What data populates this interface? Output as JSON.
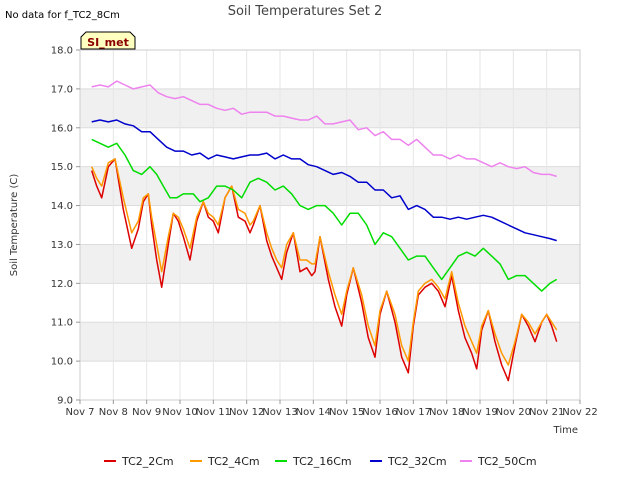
{
  "no_data_note": "No data for f_TC2_8Cm",
  "badge_label": "SI_met",
  "badge_colors": {
    "fill": "#ffffc0",
    "border": "#000000",
    "text": "#8b0000"
  },
  "band_color": "#f0f0f0",
  "chart_data": {
    "type": "line",
    "title": "Soil Temperatures Set 2",
    "xlabel": "Time",
    "ylabel": "Soil Temperature (C)",
    "xlim": [
      7,
      22
    ],
    "ylim": [
      9.0,
      18.0
    ],
    "y_ticks": [
      "9.0",
      "10.0",
      "11.0",
      "12.0",
      "13.0",
      "14.0",
      "15.0",
      "16.0",
      "17.0",
      "18.0"
    ],
    "x_ticks": [
      {
        "x": 7,
        "label": "Nov 7"
      },
      {
        "x": 8,
        "label": "Nov 8"
      },
      {
        "x": 9,
        "label": "Nov 9"
      },
      {
        "x": 10,
        "label": "Nov 10"
      },
      {
        "x": 11,
        "label": "Nov 11"
      },
      {
        "x": 12,
        "label": "Nov 12"
      },
      {
        "x": 13,
        "label": "Nov 13"
      },
      {
        "x": 14,
        "label": "Nov 14"
      },
      {
        "x": 15,
        "label": "Nov 15"
      },
      {
        "x": 16,
        "label": "Nov 16"
      },
      {
        "x": 17,
        "label": "Nov 17"
      },
      {
        "x": 18,
        "label": "Nov 18"
      },
      {
        "x": 19,
        "label": "Nov 19"
      },
      {
        "x": 20,
        "label": "Nov 20"
      },
      {
        "x": 21,
        "label": "Nov 21"
      },
      {
        "x": 22,
        "label": "Nov 22"
      }
    ],
    "grid": true,
    "legend_position": "bottom",
    "series": [
      {
        "name": "TC2_2Cm",
        "color": "#dd0000",
        "x": [
          7.35,
          7.5,
          7.65,
          7.85,
          8.05,
          8.3,
          8.55,
          8.75,
          8.9,
          9.05,
          9.15,
          9.3,
          9.45,
          9.65,
          9.8,
          9.95,
          10.1,
          10.3,
          10.5,
          10.7,
          10.85,
          11.0,
          11.15,
          11.35,
          11.55,
          11.75,
          11.95,
          12.1,
          12.2,
          12.4,
          12.6,
          12.75,
          12.9,
          13.05,
          13.2,
          13.4,
          13.6,
          13.8,
          13.95,
          14.05,
          14.2,
          14.45,
          14.65,
          14.85,
          15.0,
          15.2,
          15.45,
          15.65,
          15.85,
          16.0,
          16.2,
          16.45,
          16.65,
          16.85,
          17.0,
          17.15,
          17.35,
          17.55,
          17.75,
          17.95,
          18.15,
          18.35,
          18.55,
          18.75,
          18.9,
          19.05,
          19.25,
          19.45,
          19.65,
          19.85,
          20.05,
          20.25,
          20.45,
          20.65,
          20.85,
          21.0,
          21.15,
          21.3
        ],
        "y": [
          14.9,
          14.5,
          14.2,
          15.0,
          15.2,
          13.9,
          12.9,
          13.4,
          14.1,
          14.3,
          13.5,
          12.6,
          11.9,
          13.0,
          13.8,
          13.6,
          13.2,
          12.6,
          13.6,
          14.1,
          13.7,
          13.6,
          13.3,
          14.2,
          14.5,
          13.7,
          13.6,
          13.3,
          13.5,
          14.0,
          13.1,
          12.7,
          12.4,
          12.1,
          12.8,
          13.3,
          12.3,
          12.4,
          12.2,
          12.3,
          13.2,
          12.1,
          11.4,
          10.9,
          11.7,
          12.4,
          11.5,
          10.6,
          10.1,
          11.2,
          11.8,
          11.0,
          10.1,
          9.7,
          10.9,
          11.7,
          11.9,
          12.0,
          11.8,
          11.4,
          12.2,
          11.3,
          10.6,
          10.2,
          9.8,
          10.8,
          11.3,
          10.5,
          9.9,
          9.5,
          10.4,
          11.2,
          10.9,
          10.5,
          11.0,
          11.2,
          10.9,
          10.5
        ]
      },
      {
        "name": "TC2_4Cm",
        "color": "#ff9900",
        "x": [
          7.35,
          7.5,
          7.65,
          7.85,
          8.05,
          8.3,
          8.55,
          8.75,
          8.9,
          9.05,
          9.15,
          9.3,
          9.45,
          9.65,
          9.8,
          9.95,
          10.1,
          10.3,
          10.5,
          10.7,
          10.85,
          11.0,
          11.15,
          11.35,
          11.55,
          11.75,
          11.95,
          12.1,
          12.2,
          12.4,
          12.6,
          12.75,
          12.9,
          13.05,
          13.2,
          13.4,
          13.6,
          13.8,
          13.95,
          14.05,
          14.2,
          14.45,
          14.65,
          14.85,
          15.0,
          15.2,
          15.45,
          15.65,
          15.85,
          16.0,
          16.2,
          16.45,
          16.65,
          16.85,
          17.0,
          17.15,
          17.35,
          17.55,
          17.75,
          17.95,
          18.15,
          18.35,
          18.55,
          18.75,
          18.9,
          19.05,
          19.25,
          19.45,
          19.65,
          19.85,
          20.05,
          20.25,
          20.45,
          20.65,
          20.85,
          21.0,
          21.15,
          21.3
        ],
        "y": [
          15.0,
          14.7,
          14.5,
          15.1,
          15.2,
          14.2,
          13.3,
          13.6,
          14.2,
          14.3,
          13.7,
          13.0,
          12.3,
          13.2,
          13.8,
          13.7,
          13.4,
          12.9,
          13.7,
          14.1,
          13.8,
          13.7,
          13.5,
          14.2,
          14.5,
          13.9,
          13.8,
          13.5,
          13.6,
          14.0,
          13.3,
          12.9,
          12.6,
          12.4,
          13.0,
          13.3,
          12.6,
          12.6,
          12.5,
          12.5,
          13.2,
          12.3,
          11.7,
          11.2,
          11.8,
          12.4,
          11.7,
          10.9,
          10.4,
          11.3,
          11.8,
          11.2,
          10.4,
          10.0,
          11.0,
          11.8,
          12.0,
          12.1,
          11.9,
          11.6,
          12.3,
          11.5,
          10.9,
          10.5,
          10.2,
          10.9,
          11.3,
          10.7,
          10.2,
          9.9,
          10.5,
          11.2,
          11.0,
          10.7,
          11.0,
          11.2,
          11.0,
          10.8
        ]
      },
      {
        "name": "TC2_16Cm",
        "color": "#00dd00",
        "x": [
          7.35,
          7.6,
          7.85,
          8.1,
          8.35,
          8.6,
          8.85,
          9.1,
          9.3,
          9.5,
          9.7,
          9.9,
          10.1,
          10.4,
          10.6,
          10.85,
          11.1,
          11.35,
          11.6,
          11.85,
          12.1,
          12.35,
          12.6,
          12.85,
          13.1,
          13.35,
          13.6,
          13.85,
          14.1,
          14.35,
          14.6,
          14.85,
          15.1,
          15.35,
          15.6,
          15.85,
          16.1,
          16.35,
          16.6,
          16.85,
          17.1,
          17.35,
          17.6,
          17.85,
          18.1,
          18.35,
          18.6,
          18.85,
          19.1,
          19.35,
          19.6,
          19.85,
          20.1,
          20.35,
          20.6,
          20.85,
          21.1,
          21.3
        ],
        "y": [
          15.7,
          15.6,
          15.5,
          15.6,
          15.3,
          14.9,
          14.8,
          15.0,
          14.8,
          14.5,
          14.2,
          14.2,
          14.3,
          14.3,
          14.1,
          14.2,
          14.5,
          14.5,
          14.4,
          14.2,
          14.6,
          14.7,
          14.6,
          14.4,
          14.5,
          14.3,
          14.0,
          13.9,
          14.0,
          14.0,
          13.8,
          13.5,
          13.8,
          13.8,
          13.5,
          13.0,
          13.3,
          13.2,
          12.9,
          12.6,
          12.7,
          12.7,
          12.4,
          12.1,
          12.4,
          12.7,
          12.8,
          12.7,
          12.9,
          12.7,
          12.5,
          12.1,
          12.2,
          12.2,
          12.0,
          11.8,
          12.0,
          12.1
        ]
      },
      {
        "name": "TC2_32Cm",
        "color": "#0000cc",
        "x": [
          7.35,
          7.6,
          7.85,
          8.1,
          8.35,
          8.6,
          8.85,
          9.1,
          9.35,
          9.6,
          9.85,
          10.1,
          10.35,
          10.6,
          10.85,
          11.1,
          11.35,
          11.6,
          11.85,
          12.1,
          12.35,
          12.6,
          12.85,
          13.1,
          13.35,
          13.6,
          13.85,
          14.1,
          14.35,
          14.6,
          14.85,
          15.1,
          15.35,
          15.6,
          15.85,
          16.1,
          16.35,
          16.6,
          16.85,
          17.1,
          17.35,
          17.6,
          17.85,
          18.1,
          18.35,
          18.6,
          18.85,
          19.1,
          19.35,
          19.6,
          19.85,
          20.1,
          20.35,
          20.6,
          20.85,
          21.1,
          21.3
        ],
        "y": [
          16.15,
          16.2,
          16.15,
          16.2,
          16.1,
          16.05,
          15.9,
          15.9,
          15.7,
          15.5,
          15.4,
          15.4,
          15.3,
          15.35,
          15.2,
          15.3,
          15.25,
          15.2,
          15.25,
          15.3,
          15.3,
          15.35,
          15.2,
          15.3,
          15.2,
          15.2,
          15.05,
          15.0,
          14.9,
          14.8,
          14.85,
          14.75,
          14.6,
          14.6,
          14.4,
          14.4,
          14.2,
          14.25,
          13.9,
          14.0,
          13.9,
          13.7,
          13.7,
          13.65,
          13.7,
          13.65,
          13.7,
          13.75,
          13.7,
          13.6,
          13.5,
          13.4,
          13.3,
          13.25,
          13.2,
          13.15,
          13.1
        ]
      },
      {
        "name": "TC2_50Cm",
        "color": "#ee82ee",
        "x": [
          7.35,
          7.6,
          7.85,
          8.1,
          8.35,
          8.6,
          8.85,
          9.1,
          9.35,
          9.6,
          9.85,
          10.1,
          10.35,
          10.6,
          10.85,
          11.1,
          11.35,
          11.6,
          11.85,
          12.1,
          12.35,
          12.6,
          12.85,
          13.1,
          13.35,
          13.6,
          13.85,
          14.1,
          14.35,
          14.6,
          14.85,
          15.1,
          15.35,
          15.6,
          15.85,
          16.1,
          16.35,
          16.6,
          16.85,
          17.1,
          17.35,
          17.6,
          17.85,
          18.1,
          18.35,
          18.6,
          18.85,
          19.1,
          19.35,
          19.6,
          19.85,
          20.1,
          20.35,
          20.6,
          20.85,
          21.1,
          21.3
        ],
        "y": [
          17.05,
          17.1,
          17.05,
          17.2,
          17.1,
          17.0,
          17.05,
          17.1,
          16.9,
          16.8,
          16.75,
          16.8,
          16.7,
          16.6,
          16.6,
          16.5,
          16.45,
          16.5,
          16.35,
          16.4,
          16.4,
          16.4,
          16.3,
          16.3,
          16.25,
          16.2,
          16.2,
          16.3,
          16.1,
          16.1,
          16.15,
          16.2,
          15.95,
          16.0,
          15.8,
          15.9,
          15.7,
          15.7,
          15.55,
          15.7,
          15.5,
          15.3,
          15.3,
          15.2,
          15.3,
          15.2,
          15.2,
          15.1,
          15.0,
          15.1,
          15.0,
          14.95,
          15.0,
          14.85,
          14.8,
          14.8,
          14.75
        ]
      }
    ]
  }
}
